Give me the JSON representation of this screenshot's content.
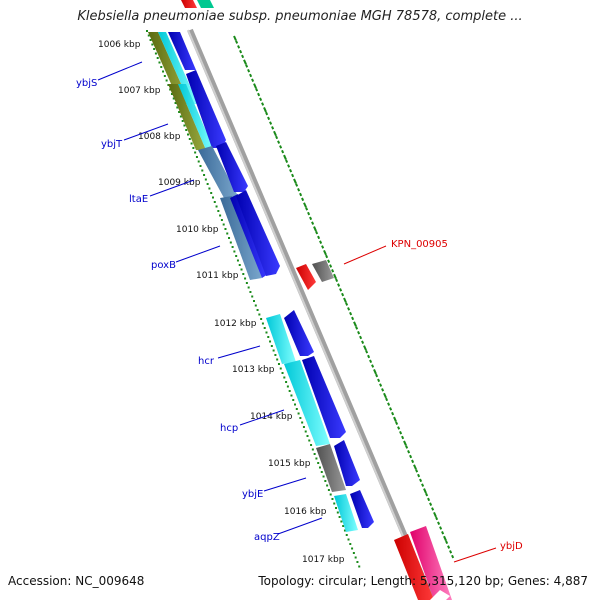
{
  "header": {
    "title": "Klebsiella pneumoniae subsp. pneumoniae MGH 78578, complete ..."
  },
  "footer": {
    "accession": "Accession: NC_009648",
    "summary": "Topology: circular; Length: 5,315,120 bp; Genes: 4,887"
  },
  "ticks": [
    "1006 kbp",
    "1007 kbp",
    "1008 kbp",
    "1009 kbp",
    "1010 kbp",
    "1011 kbp",
    "1012 kbp",
    "1013 kbp",
    "1014 kbp",
    "1015 kbp",
    "1016 kbp",
    "1017 kbp"
  ],
  "left_labels": [
    "ybjS",
    "ybjT",
    "ltaE",
    "poxB",
    "hcr",
    "hcp",
    "ybjE",
    "aqpZ"
  ],
  "right_labels": [
    "KPN_00905",
    "ybjD"
  ],
  "colors": {
    "forward_cds": "#1010e0",
    "reverse_cds": "#ee0000",
    "hypothetical": "#707070",
    "backbone": "#909090",
    "gc_ticks": "#1a8a1a",
    "left_label_color": "#0000cc",
    "right_label_color": "#dd0000"
  }
}
